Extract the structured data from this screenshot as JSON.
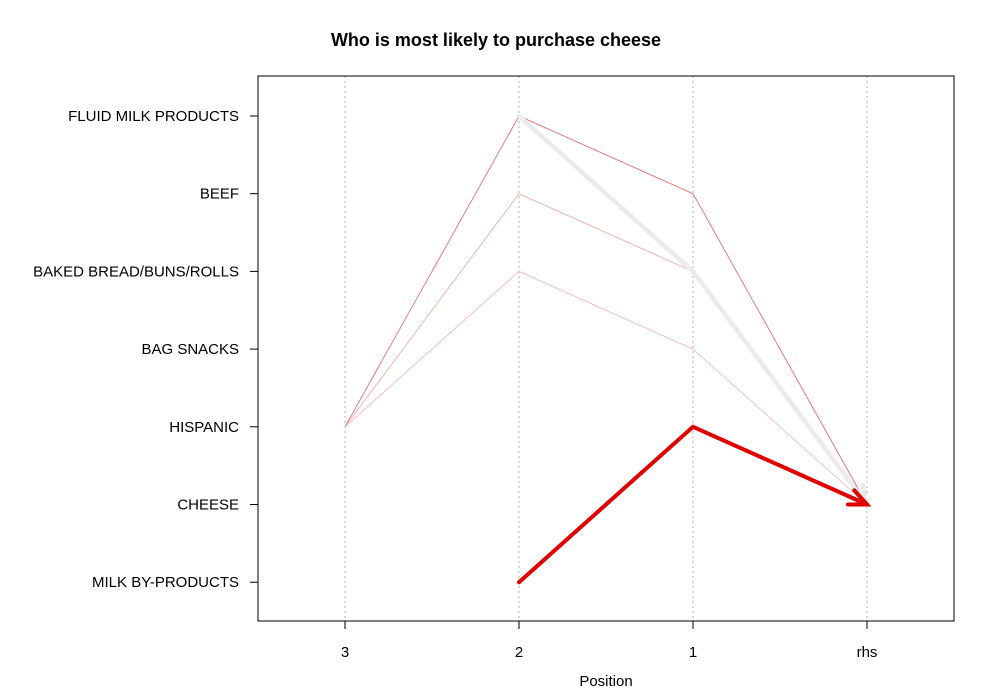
{
  "chart_data": {
    "type": "line",
    "title": "Who is most likely to purchase cheese",
    "xlabel": "Position",
    "ylabel": "",
    "x_categories": [
      "3",
      "2",
      "1",
      "rhs"
    ],
    "y_categories": [
      "FLUID MILK PRODUCTS",
      "BEEF",
      "BAKED BREAD/BUNS/ROLLS",
      "BAG SNACKS",
      "HISPANIC",
      "CHEESE",
      "MILK BY-PRODUCTS"
    ],
    "grid": "vertical-dotted",
    "rules": [
      {
        "path": [
          "HISPANIC",
          "FLUID MILK PRODUCTS",
          "BEEF",
          "CHEESE"
        ],
        "width": 0.9,
        "color": "#e06060",
        "opacity": 0.9
      },
      {
        "path": [
          "HISPANIC",
          "BEEF",
          "BAKED BREAD/BUNS/ROLLS",
          "CHEESE"
        ],
        "width": 0.8,
        "color": "#ec9a9a",
        "opacity": 0.9
      },
      {
        "path": [
          "HISPANIC",
          "BAKED BREAD/BUNS/ROLLS",
          "BAG SNACKS",
          "CHEESE"
        ],
        "width": 0.8,
        "color": "#f0a8a8",
        "opacity": 0.9
      },
      {
        "path": [
          "FLUID MILK PRODUCTS",
          "BAKED BREAD/BUNS/ROLLS",
          "CHEESE"
        ],
        "width": 4.5,
        "color": "#ebebeb",
        "opacity": 1.0
      },
      {
        "path": [
          "MILK BY-PRODUCTS",
          "HISPANIC",
          "CHEESE"
        ],
        "width": 4.0,
        "color": "#e00000",
        "opacity": 1.0
      }
    ]
  }
}
